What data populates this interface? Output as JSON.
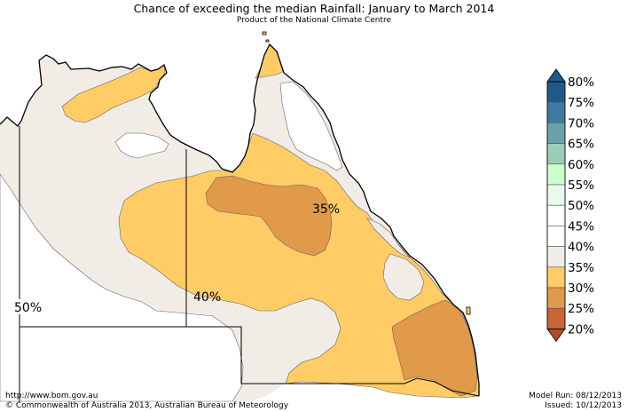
{
  "header": {
    "title": "Chance of exceeding the median Rainfall: January to March 2014",
    "subtitle": "Product of the National Climate Centre"
  },
  "map_labels": {
    "label_50": "50%",
    "label_40": "40%",
    "label_35": "35%"
  },
  "legend": {
    "entries": [
      {
        "label": "80%",
        "color": "#1f5a8a"
      },
      {
        "label": "75%",
        "color": "#3f7aa0"
      },
      {
        "label": "70%",
        "color": "#6aa1a8"
      },
      {
        "label": "65%",
        "color": "#9dcdb6"
      },
      {
        "label": "60%",
        "color": "#ccffcc"
      },
      {
        "label": "55%",
        "color": "#eafaea"
      },
      {
        "label": "50%",
        "color": "#ffffff"
      },
      {
        "label": "45%",
        "color": "#ffffff"
      },
      {
        "label": "40%",
        "color": "#f1ece6"
      },
      {
        "label": "35%",
        "color": "#ffcc66"
      },
      {
        "label": "30%",
        "color": "#e09a4a"
      },
      {
        "label": "25%",
        "color": "#c8663a"
      },
      {
        "label": "20%",
        "color": "#b04b28"
      }
    ]
  },
  "colors": {
    "band_40_45": "#f1ece6",
    "band_35_40": "#ffcc66",
    "band_30_35": "#e09a4a",
    "band_50_55": "#ffffff",
    "coastline": "#000000",
    "contour": "#666666"
  },
  "footer": {
    "url": "http://www.bom.gov.au",
    "copyright": "©  Commonwealth of Australia 2013, Australian Bureau of Meteorology",
    "model_run": "Model Run: 08/12/2013",
    "issued": "Issued: 10/12/2013"
  }
}
